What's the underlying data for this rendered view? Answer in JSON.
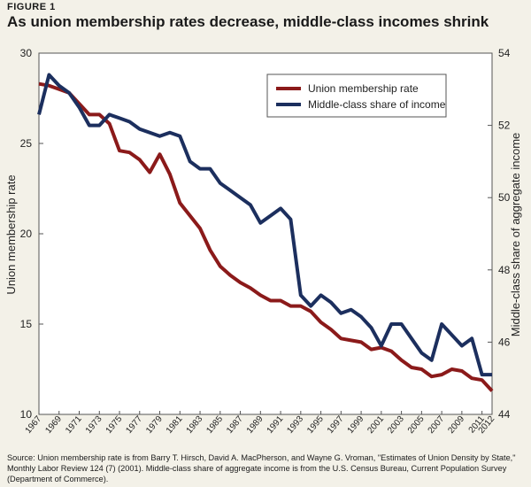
{
  "figure_label": "FIGURE 1",
  "title": "As union membership rates decrease, middle-class incomes shrink",
  "source": "Source: Union membership rate is from Barry T. Hirsch, David A. MacPherson, and Wayne G. Vroman, \"Estimates of Union Density by State,\" Monthly Labor Review 124 (7) (2001). Middle-class share of aggregate income is from the U.S. Census Bureau, Current Population Survey (Department of Commerce).",
  "colors": {
    "union": "#8b1a1a",
    "middle": "#1c2f5e",
    "background": "#f3f1e8"
  },
  "chart_data": {
    "type": "line",
    "ylabel": "Union membership rate",
    "y2label": "Middle-class share of aggregate income",
    "ylim": [
      10,
      30
    ],
    "y2lim": [
      44,
      54
    ],
    "yticks": [
      10,
      15,
      20,
      25,
      30
    ],
    "y2ticks": [
      44,
      46,
      48,
      50,
      52,
      54
    ],
    "x_ticks": [
      "1967",
      "1969",
      "1971",
      "1973",
      "1975",
      "1977",
      "1979",
      "1981",
      "1983",
      "1985",
      "1987",
      "1989",
      "1991",
      "1993",
      "1995",
      "1997",
      "1999",
      "2001",
      "2003",
      "2005",
      "2007",
      "2009",
      "2011",
      "2012"
    ],
    "x": [
      1967,
      1968,
      1969,
      1970,
      1971,
      1972,
      1973,
      1974,
      1975,
      1976,
      1977,
      1978,
      1979,
      1980,
      1981,
      1982,
      1983,
      1984,
      1985,
      1986,
      1987,
      1988,
      1989,
      1990,
      1991,
      1992,
      1993,
      1994,
      1995,
      1996,
      1997,
      1998,
      1999,
      2000,
      2001,
      2002,
      2003,
      2004,
      2005,
      2006,
      2007,
      2008,
      2009,
      2010,
      2011,
      2012
    ],
    "legend": {
      "placement": "top-right"
    },
    "grid": false,
    "series": [
      {
        "name": "Union membership rate",
        "axis": "left",
        "values": [
          28.3,
          28.2,
          28.0,
          27.8,
          27.2,
          26.6,
          26.6,
          26.1,
          24.6,
          24.5,
          24.1,
          23.4,
          24.4,
          23.3,
          21.7,
          21.0,
          20.3,
          19.1,
          18.2,
          17.7,
          17.3,
          17.0,
          16.6,
          16.3,
          16.3,
          16.0,
          16.0,
          15.7,
          15.1,
          14.7,
          14.2,
          14.1,
          14.0,
          13.6,
          13.7,
          13.5,
          13.0,
          12.6,
          12.5,
          12.1,
          12.2,
          12.5,
          12.4,
          12.0,
          11.9,
          11.3
        ]
      },
      {
        "name": "Middle-class share of income",
        "axis": "right",
        "values": [
          52.3,
          53.4,
          53.1,
          52.9,
          52.5,
          52.0,
          52.0,
          52.3,
          52.2,
          52.1,
          51.9,
          51.8,
          51.7,
          51.8,
          51.7,
          51.0,
          50.8,
          50.8,
          50.4,
          50.2,
          50.0,
          49.8,
          49.3,
          49.5,
          49.7,
          49.4,
          47.3,
          47.0,
          47.3,
          47.1,
          46.8,
          46.9,
          46.7,
          46.4,
          45.9,
          46.5,
          46.5,
          46.1,
          45.7,
          45.5,
          46.5,
          46.2,
          45.9,
          46.1,
          45.1,
          45.1
        ]
      }
    ]
  }
}
